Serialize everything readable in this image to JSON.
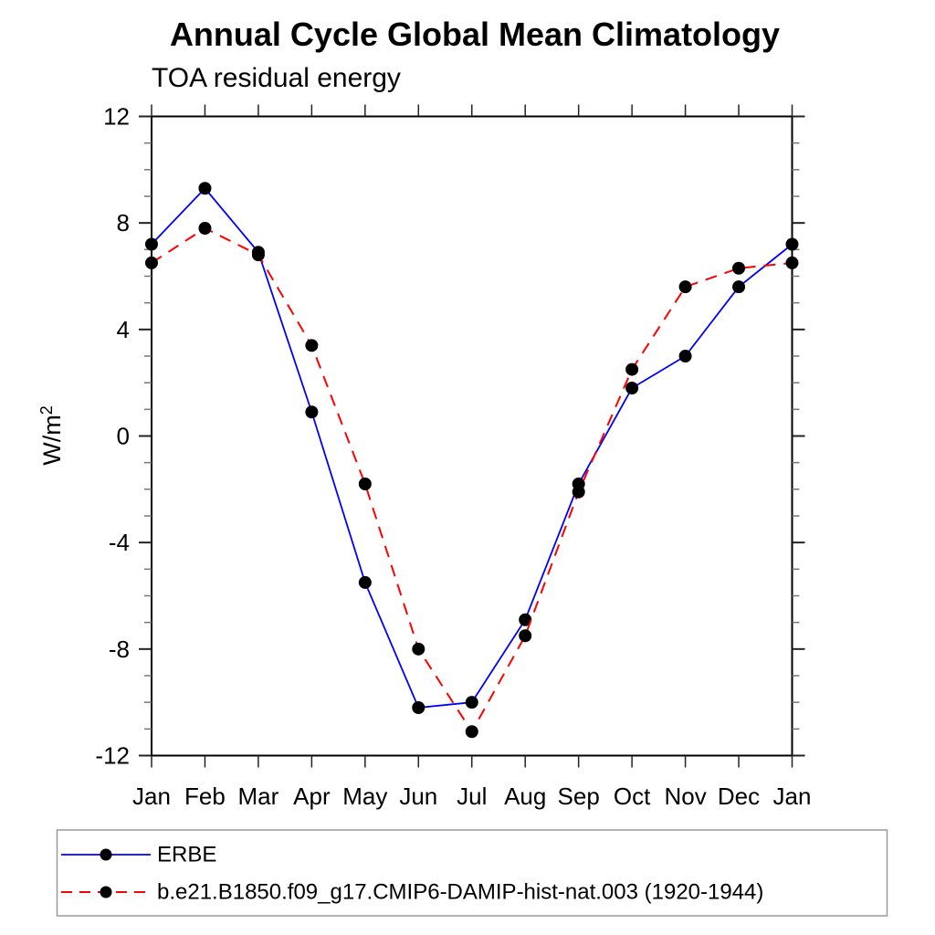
{
  "chart_data": {
    "type": "line",
    "title": "Annual Cycle Global Mean Climatology",
    "subtitle": "TOA residual energy",
    "ylabel_base": "W/m",
    "ylabel_exponent": "2",
    "xlabel": "",
    "x_categories": [
      "Jan",
      "Feb",
      "Mar",
      "Apr",
      "May",
      "Jun",
      "Jul",
      "Aug",
      "Sep",
      "Oct",
      "Nov",
      "Dec",
      "Jan"
    ],
    "ylim": [
      -12,
      12
    ],
    "ytick_labels": [
      "12",
      "8",
      "4",
      "0",
      "-4",
      "-8",
      "-12"
    ],
    "ytick_major_interval": 4,
    "ytick_minor_interval": 1,
    "grid": false,
    "legend_position": "bottom",
    "axis_color": "#000000",
    "marker_color": "#000000",
    "series": [
      {
        "name": "ERBE",
        "color": "#0000ff",
        "line_style": "solid",
        "marker": "filled-circle",
        "values": [
          7.2,
          9.3,
          6.9,
          0.9,
          -5.5,
          -10.2,
          -10.0,
          -6.9,
          -1.8,
          1.8,
          3.0,
          5.6,
          7.2
        ]
      },
      {
        "name": "b.e21.B1850.f09_g17.CMIP6-DAMIP-hist-nat.003 (1920-1944)",
        "color": "#ff0000",
        "line_style": "dashed",
        "marker": "filled-circle",
        "values": [
          6.5,
          7.8,
          6.8,
          3.4,
          -1.8,
          -8.0,
          -11.1,
          -7.5,
          -2.1,
          2.5,
          5.6,
          6.3,
          6.5
        ]
      }
    ]
  }
}
